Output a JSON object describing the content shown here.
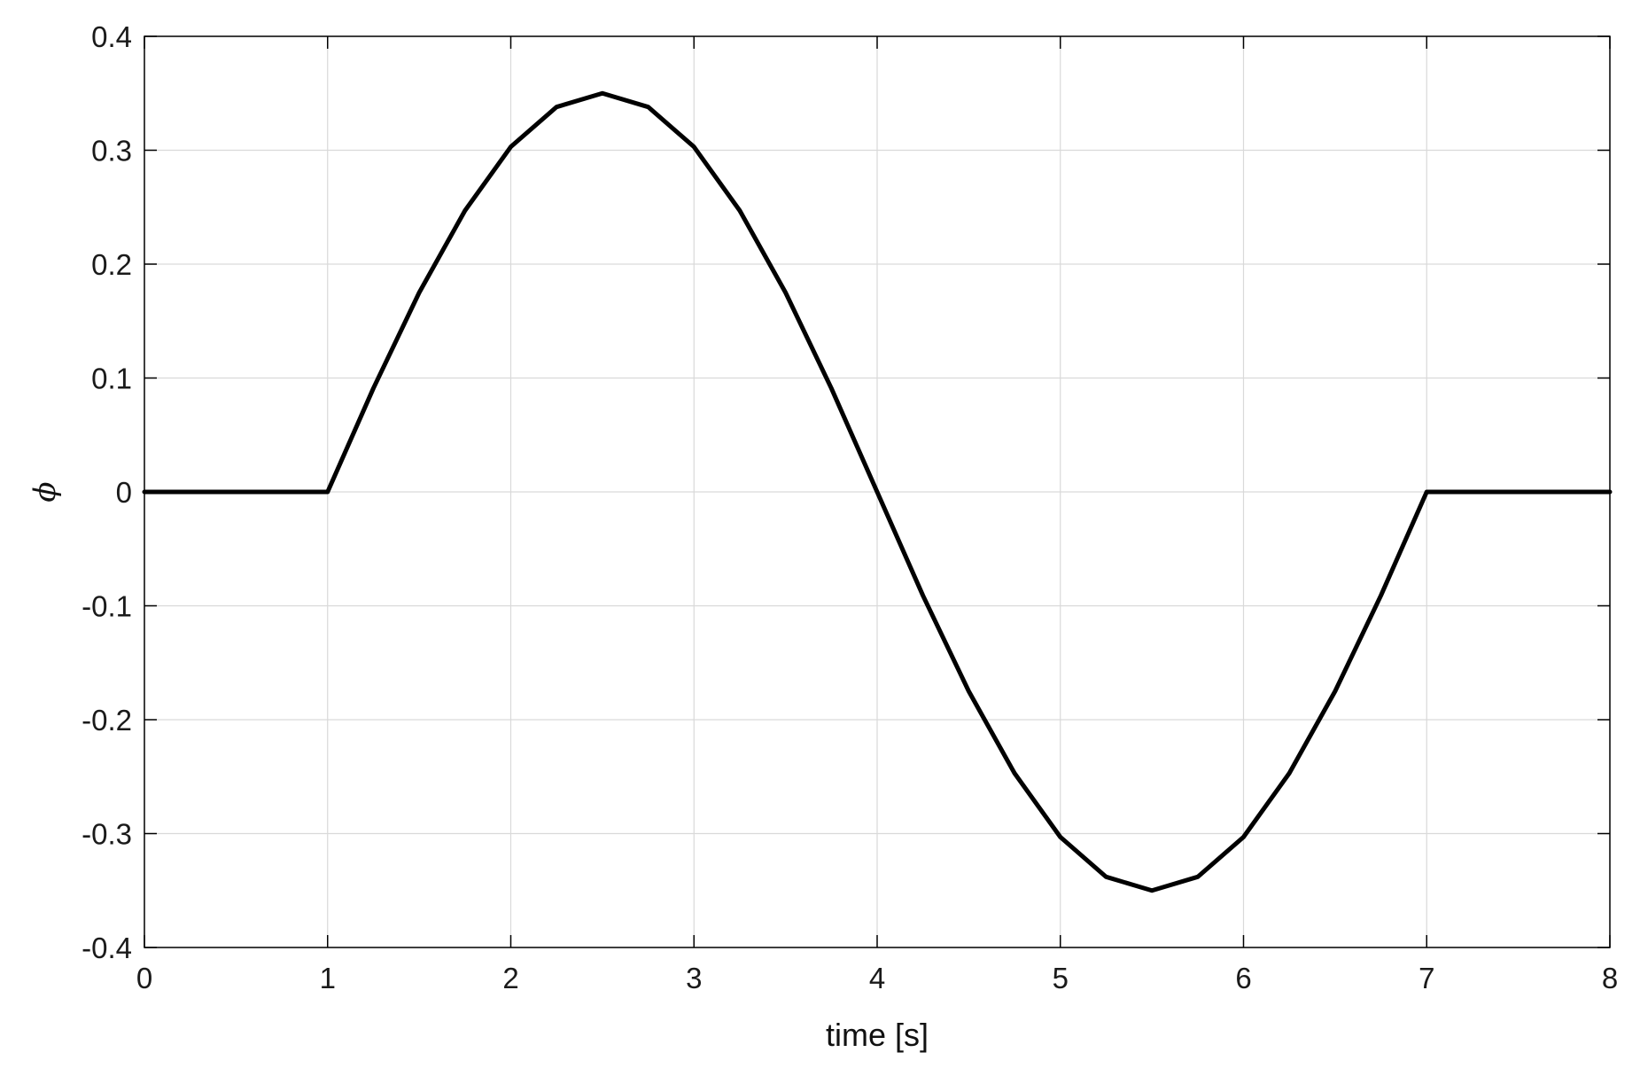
{
  "chart_data": {
    "type": "line",
    "title": "",
    "xlabel": "time [s]",
    "ylabel": "ϕ",
    "xlim": [
      0,
      8
    ],
    "ylim": [
      -0.4,
      0.4
    ],
    "grid": true,
    "x_ticks": [
      0,
      1,
      2,
      3,
      4,
      5,
      6,
      7,
      8
    ],
    "x_tick_labels": [
      "0",
      "1",
      "2",
      "3",
      "4",
      "5",
      "6",
      "7",
      "8"
    ],
    "y_ticks": [
      0.4,
      0.3,
      0.2,
      0.1,
      0,
      -0.1,
      -0.2,
      -0.3,
      -0.4
    ],
    "y_tick_labels": [
      "0.4",
      "0.3",
      "0.2",
      "0.1",
      "0",
      "-0.1",
      "-0.2",
      "-0.3",
      "-0.4"
    ],
    "series": [
      {
        "color": "#000000",
        "x": [
          0,
          1,
          1.25,
          1.5,
          1.75,
          2,
          2.25,
          2.5,
          2.75,
          3,
          3.25,
          3.5,
          3.75,
          4,
          4.25,
          4.5,
          4.75,
          5,
          5.25,
          5.5,
          5.75,
          6,
          6.25,
          6.5,
          6.75,
          7,
          8
        ],
        "y": [
          0,
          0,
          0.091,
          0.175,
          0.247,
          0.303,
          0.338,
          0.35,
          0.338,
          0.303,
          0.247,
          0.175,
          0.091,
          0,
          -0.091,
          -0.175,
          -0.247,
          -0.303,
          -0.338,
          -0.35,
          -0.338,
          -0.303,
          -0.247,
          -0.175,
          -0.091,
          0,
          0
        ]
      }
    ]
  }
}
